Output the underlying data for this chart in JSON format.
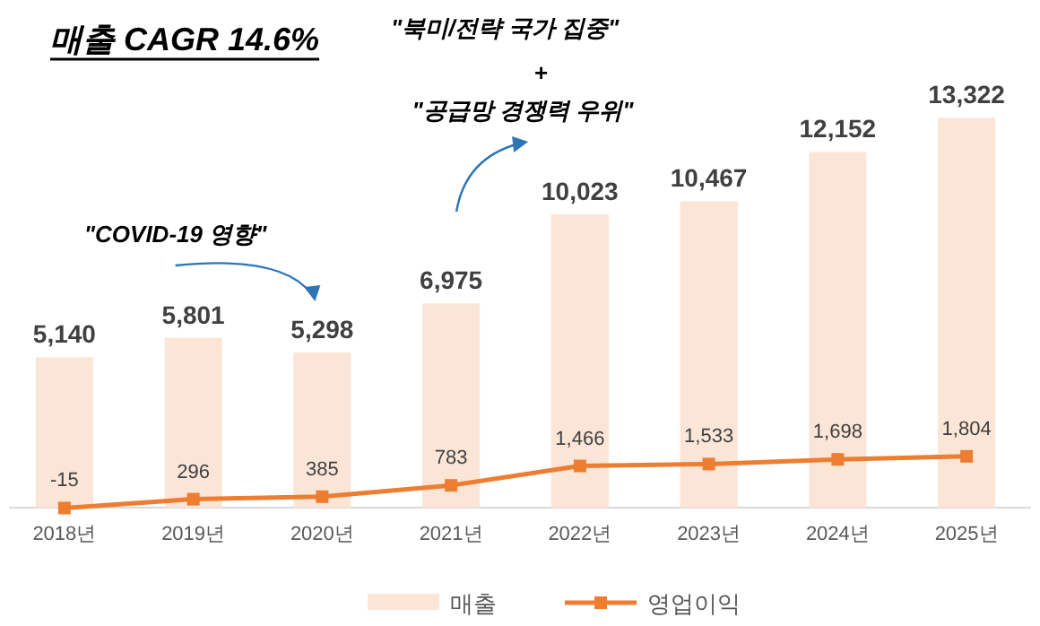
{
  "chart_data": {
    "type": "bar",
    "title": "매출 CAGR 14.6%",
    "categories": [
      "2018년",
      "2019년",
      "2020년",
      "2021년",
      "2022년",
      "2023년",
      "2024년",
      "2025년"
    ],
    "series": [
      {
        "name": "매출",
        "color": "#fbe5d6",
        "values": [
          5140,
          5801,
          5298,
          6975,
          10023,
          10467,
          12152,
          13322
        ],
        "value_labels": [
          "5,140",
          "5,801",
          "5,298",
          "6,975",
          "10,023",
          "10,467",
          "12,152",
          "13,322"
        ]
      },
      {
        "name": "영업이익",
        "type": "line",
        "axis": "y2",
        "color": "#ed7d31",
        "marker": "square",
        "values": [
          -15,
          296,
          385,
          783,
          1466,
          1533,
          1698,
          1804
        ],
        "value_labels": [
          "-15",
          "296",
          "385",
          "783",
          "1,466",
          "1,533",
          "1,698",
          "1,804"
        ]
      }
    ],
    "legend": "bottom",
    "grid": false,
    "annotations": [
      "\"COVID-19 영향\"",
      "\"북미/전략 국가 집중\"",
      "+",
      "\"공급망 경쟁력 우위\""
    ]
  }
}
